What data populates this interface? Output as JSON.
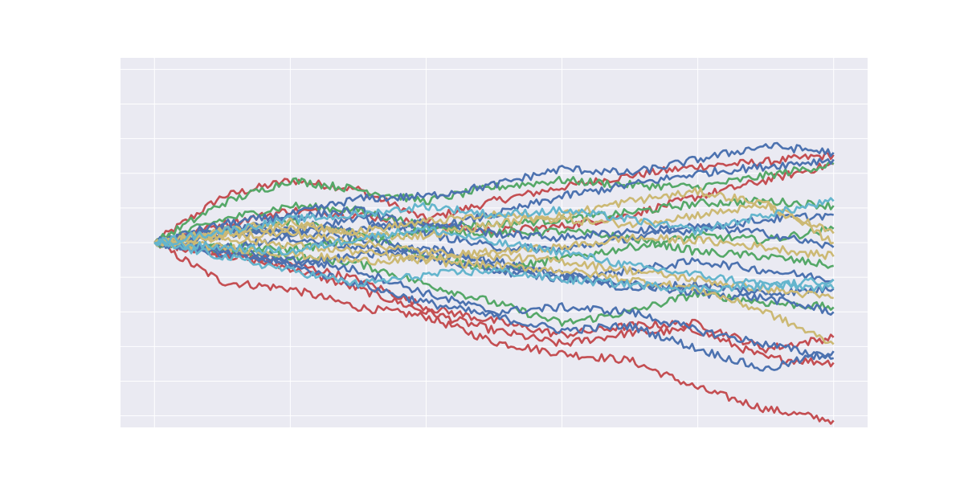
{
  "chart_data": {
    "type": "line",
    "style": "seaborn-darkgrid",
    "title": "",
    "xlabel": "",
    "ylabel": "",
    "tick_labels_visible": false,
    "legend": "none",
    "grid": true,
    "background": "#eaeaf2",
    "gridColor": "#ffffff",
    "palette": [
      "#4c72b0",
      "#dd8452",
      "#55a868",
      "#c44e52",
      "#8172b3",
      "#ccb974",
      "#64b5cd"
    ],
    "xlim": [
      -0.05,
      1.05
    ],
    "ylim": [
      -0.8,
      0.8
    ],
    "xgrid": [
      0,
      0.2,
      0.4,
      0.6,
      0.8,
      1.0
    ],
    "ygrid": [
      -0.75,
      -0.6,
      -0.45,
      -0.3,
      -0.15,
      0,
      0.15,
      0.3,
      0.45,
      0.6,
      0.75
    ],
    "series": [
      {
        "color": "#c44e52",
        "x": [
          0,
          0.1,
          0.2,
          0.3,
          0.4,
          0.5,
          0.6,
          0.7,
          0.8,
          0.9,
          1.0
        ],
        "y": [
          0,
          0.2,
          0.27,
          0.23,
          0.1,
          0.18,
          0.24,
          0.29,
          0.33,
          0.35,
          0.38
        ]
      },
      {
        "color": "#c44e52",
        "x": [
          0,
          0.1,
          0.2,
          0.3,
          0.4,
          0.5,
          0.6,
          0.7,
          0.8,
          0.9,
          1.0
        ],
        "y": [
          0,
          -0.17,
          -0.2,
          -0.28,
          -0.32,
          -0.43,
          -0.48,
          -0.51,
          -0.63,
          -0.72,
          -0.77
        ]
      },
      {
        "color": "#c44e52",
        "x": [
          0,
          0.1,
          0.2,
          0.3,
          0.4,
          0.5,
          0.6,
          0.7,
          0.8,
          0.9,
          1.0
        ],
        "y": [
          0,
          -0.05,
          -0.11,
          -0.2,
          -0.3,
          -0.38,
          -0.44,
          -0.39,
          -0.38,
          -0.5,
          -0.52
        ]
      },
      {
        "color": "#c44e52",
        "x": [
          0,
          0.1,
          0.2,
          0.3,
          0.4,
          0.5,
          0.6,
          0.7,
          0.8,
          0.9,
          1.0
        ],
        "y": [
          0,
          0.08,
          0.14,
          0.12,
          0.08,
          0.05,
          0.07,
          0.12,
          0.2,
          0.27,
          0.34
        ]
      },
      {
        "color": "#c44e52",
        "x": [
          0,
          0.1,
          0.2,
          0.3,
          0.4,
          0.5,
          0.6,
          0.7,
          0.8,
          0.9,
          1.0
        ],
        "y": [
          0,
          -0.04,
          -0.09,
          -0.16,
          -0.28,
          -0.34,
          -0.4,
          -0.36,
          -0.35,
          -0.46,
          -0.41
        ]
      },
      {
        "color": "#55a868",
        "x": [
          0,
          0.1,
          0.2,
          0.3,
          0.4,
          0.5,
          0.6,
          0.7,
          0.8,
          0.9,
          1.0
        ],
        "y": [
          0,
          0.17,
          0.27,
          0.23,
          0.18,
          0.24,
          0.27,
          0.25,
          0.24,
          0.29,
          0.34
        ]
      },
      {
        "color": "#55a868",
        "x": [
          0,
          0.1,
          0.2,
          0.3,
          0.4,
          0.5,
          0.6,
          0.7,
          0.8,
          0.9,
          1.0
        ],
        "y": [
          0,
          0.1,
          0.16,
          0.14,
          0.07,
          0.08,
          0.1,
          0.13,
          0.17,
          0.18,
          0.16
        ]
      },
      {
        "color": "#55a868",
        "x": [
          0,
          0.1,
          0.2,
          0.3,
          0.4,
          0.5,
          0.6,
          0.7,
          0.8,
          0.9,
          1.0
        ],
        "y": [
          0,
          -0.03,
          -0.06,
          -0.09,
          -0.18,
          -0.26,
          -0.35,
          -0.3,
          -0.22,
          -0.26,
          -0.28
        ]
      },
      {
        "color": "#55a868",
        "x": [
          0,
          0.1,
          0.2,
          0.3,
          0.4,
          0.5,
          0.6,
          0.7,
          0.8,
          0.9,
          1.0
        ],
        "y": [
          0,
          0.05,
          0.09,
          0.04,
          -0.05,
          -0.12,
          -0.07,
          -0.02,
          0.03,
          0.01,
          0.06
        ]
      },
      {
        "color": "#55a868",
        "x": [
          0,
          0.1,
          0.2,
          0.3,
          0.4,
          0.5,
          0.6,
          0.7,
          0.8,
          0.9,
          1.0
        ],
        "y": [
          0,
          -0.02,
          -0.03,
          0.01,
          0.06,
          0.04,
          0.05,
          0.02,
          -0.04,
          -0.06,
          -0.1
        ]
      },
      {
        "color": "#4c72b0",
        "x": [
          0,
          0.1,
          0.2,
          0.3,
          0.4,
          0.5,
          0.6,
          0.7,
          0.8,
          0.9,
          1.0
        ],
        "y": [
          0,
          0.08,
          0.12,
          0.19,
          0.2,
          0.25,
          0.32,
          0.3,
          0.36,
          0.42,
          0.39
        ]
      },
      {
        "color": "#4c72b0",
        "x": [
          0,
          0.1,
          0.2,
          0.3,
          0.4,
          0.5,
          0.6,
          0.7,
          0.8,
          0.9,
          1.0
        ],
        "y": [
          0,
          0.05,
          0.11,
          0.14,
          0.06,
          0.12,
          0.2,
          0.25,
          0.3,
          0.33,
          0.36
        ]
      },
      {
        "color": "#4c72b0",
        "x": [
          0,
          0.1,
          0.2,
          0.3,
          0.4,
          0.5,
          0.6,
          0.7,
          0.8,
          0.9,
          1.0
        ],
        "y": [
          0,
          -0.04,
          -0.1,
          -0.18,
          -0.26,
          -0.32,
          -0.38,
          -0.36,
          -0.46,
          -0.55,
          -0.47
        ]
      },
      {
        "color": "#4c72b0",
        "x": [
          0,
          0.1,
          0.2,
          0.3,
          0.4,
          0.5,
          0.6,
          0.7,
          0.8,
          0.9,
          1.0
        ],
        "y": [
          0,
          -0.03,
          -0.07,
          -0.12,
          -0.22,
          -0.3,
          -0.28,
          -0.3,
          -0.38,
          -0.44,
          -0.5
        ]
      },
      {
        "color": "#4c72b0",
        "x": [
          0,
          0.1,
          0.2,
          0.3,
          0.4,
          0.5,
          0.6,
          0.7,
          0.8,
          0.9,
          1.0
        ],
        "y": [
          0,
          0.06,
          0.04,
          0.02,
          -0.04,
          -0.1,
          -0.14,
          -0.18,
          -0.22,
          -0.24,
          -0.3
        ]
      },
      {
        "color": "#4c72b0",
        "x": [
          0,
          0.1,
          0.2,
          0.3,
          0.4,
          0.5,
          0.6,
          0.7,
          0.8,
          0.9,
          1.0
        ],
        "y": [
          0,
          -0.05,
          -0.09,
          -0.06,
          -0.02,
          -0.08,
          -0.14,
          -0.2,
          -0.18,
          -0.22,
          -0.2
        ]
      },
      {
        "color": "#4c72b0",
        "x": [
          0,
          0.1,
          0.2,
          0.3,
          0.4,
          0.5,
          0.6,
          0.7,
          0.8,
          0.9,
          1.0
        ],
        "y": [
          0,
          0.04,
          0.06,
          0.1,
          0.04,
          -0.02,
          -0.03,
          0.02,
          0.06,
          0.1,
          0.12
        ]
      },
      {
        "color": "#4c72b0",
        "x": [
          0,
          0.1,
          0.2,
          0.3,
          0.4,
          0.5,
          0.6,
          0.7,
          0.8,
          0.9,
          1.0
        ],
        "y": [
          0,
          -0.02,
          0.02,
          -0.02,
          -0.07,
          -0.12,
          -0.16,
          -0.12,
          -0.08,
          -0.12,
          -0.16
        ]
      },
      {
        "color": "#4c72b0",
        "x": [
          0,
          0.1,
          0.2,
          0.3,
          0.4,
          0.5,
          0.6,
          0.7,
          0.8,
          0.9,
          1.0
        ],
        "y": [
          0,
          0.03,
          0.05,
          0.06,
          0.09,
          0.04,
          0.02,
          0.05,
          0.07,
          0.04,
          -0.02
        ]
      },
      {
        "color": "#ccb974",
        "x": [
          0,
          0.1,
          0.2,
          0.3,
          0.4,
          0.5,
          0.6,
          0.7,
          0.8,
          0.9,
          1.0
        ],
        "y": [
          0,
          0.05,
          0.09,
          0.03,
          0.03,
          0.08,
          0.12,
          0.18,
          0.22,
          0.17,
          0.0
        ]
      },
      {
        "color": "#ccb974",
        "x": [
          0,
          0.1,
          0.2,
          0.3,
          0.4,
          0.5,
          0.6,
          0.7,
          0.8,
          0.9,
          1.0
        ],
        "y": [
          0,
          0.02,
          -0.01,
          -0.04,
          -0.08,
          -0.1,
          -0.12,
          -0.16,
          -0.2,
          -0.3,
          -0.44
        ]
      },
      {
        "color": "#ccb974",
        "x": [
          0,
          0.1,
          0.2,
          0.3,
          0.4,
          0.5,
          0.6,
          0.7,
          0.8,
          0.9,
          1.0
        ],
        "y": [
          0,
          0.03,
          0.04,
          0.0,
          -0.04,
          -0.06,
          -0.08,
          -0.12,
          -0.16,
          -0.2,
          -0.24
        ]
      },
      {
        "color": "#ccb974",
        "x": [
          0,
          0.1,
          0.2,
          0.3,
          0.4,
          0.5,
          0.6,
          0.7,
          0.8,
          0.9,
          1.0
        ],
        "y": [
          0,
          -0.02,
          -0.05,
          -0.08,
          -0.07,
          -0.04,
          -0.02,
          0.02,
          0.01,
          -0.02,
          -0.06
        ]
      },
      {
        "color": "#ccb974",
        "x": [
          0,
          0.1,
          0.2,
          0.3,
          0.4,
          0.5,
          0.6,
          0.7,
          0.8,
          0.9,
          1.0
        ],
        "y": [
          0,
          0.04,
          0.07,
          0.05,
          0.09,
          0.12,
          0.1,
          0.08,
          0.12,
          0.16,
          0.04
        ]
      },
      {
        "color": "#64b5cd",
        "x": [
          0,
          0.1,
          0.2,
          0.3,
          0.4,
          0.5,
          0.6,
          0.7,
          0.8,
          0.9,
          1.0
        ],
        "y": [
          0,
          -0.06,
          -0.12,
          -0.18,
          -0.14,
          -0.12,
          -0.16,
          -0.18,
          -0.2,
          -0.19,
          -0.16
        ]
      },
      {
        "color": "#64b5cd",
        "x": [
          0,
          0.1,
          0.2,
          0.3,
          0.4,
          0.5,
          0.6,
          0.7,
          0.8,
          0.9,
          1.0
        ],
        "y": [
          0,
          0.05,
          0.1,
          0.12,
          0.16,
          0.12,
          0.14,
          0.1,
          0.05,
          0.12,
          0.18
        ]
      },
      {
        "color": "#64b5cd",
        "x": [
          0,
          0.1,
          0.2,
          0.3,
          0.4,
          0.5,
          0.6,
          0.7,
          0.8,
          0.9,
          1.0
        ],
        "y": [
          0,
          -0.02,
          -0.04,
          0.02,
          0.06,
          0.0,
          -0.04,
          -0.1,
          -0.14,
          -0.18,
          -0.2
        ]
      }
    ]
  }
}
